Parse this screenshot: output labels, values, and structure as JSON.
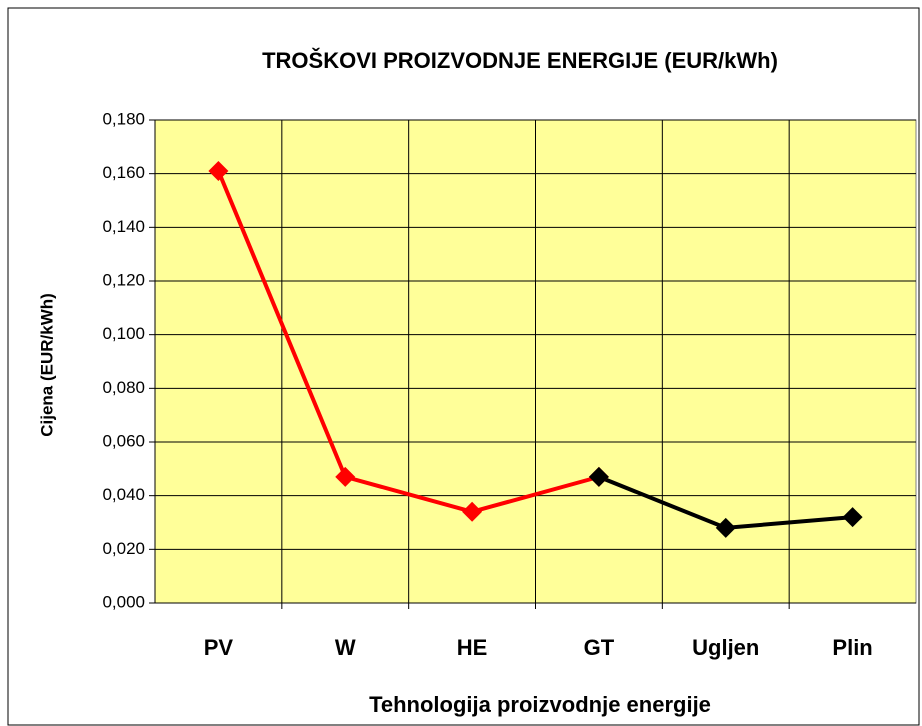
{
  "chart_data": {
    "type": "line",
    "title": "TROŠKOVI PROIZVODNJE ENERGIJE (EUR/kWh)",
    "x_label": "Tehnologija proizvodnje energije",
    "y_label": "Cijena (EUR/kWh)",
    "categories": [
      "PV",
      "W",
      "HE",
      "GT",
      "Ugljen",
      "Plin"
    ],
    "series": [
      {
        "color": "#ff0000",
        "values": [
          0.161,
          0.047,
          0.034,
          0.047,
          null,
          null
        ]
      },
      {
        "color": "#000000",
        "values": [
          null,
          null,
          null,
          0.047,
          0.028,
          0.032
        ]
      }
    ],
    "ylim": [
      0,
      0.18
    ],
    "yticks": [
      {
        "value": 0,
        "label": "0,000"
      },
      {
        "value": 0.02,
        "label": "0,020"
      },
      {
        "value": 0.04,
        "label": "0,040"
      },
      {
        "value": 0.06,
        "label": "0,060"
      },
      {
        "value": 0.08,
        "label": "0,080"
      },
      {
        "value": 0.1,
        "label": "0,100"
      },
      {
        "value": 0.12,
        "label": "0,120"
      },
      {
        "value": 0.14,
        "label": "0,140"
      },
      {
        "value": 0.16,
        "label": "0,160"
      },
      {
        "value": 0.18,
        "label": "0,180"
      }
    ],
    "grid": true,
    "plot_background": "#ffff99"
  }
}
